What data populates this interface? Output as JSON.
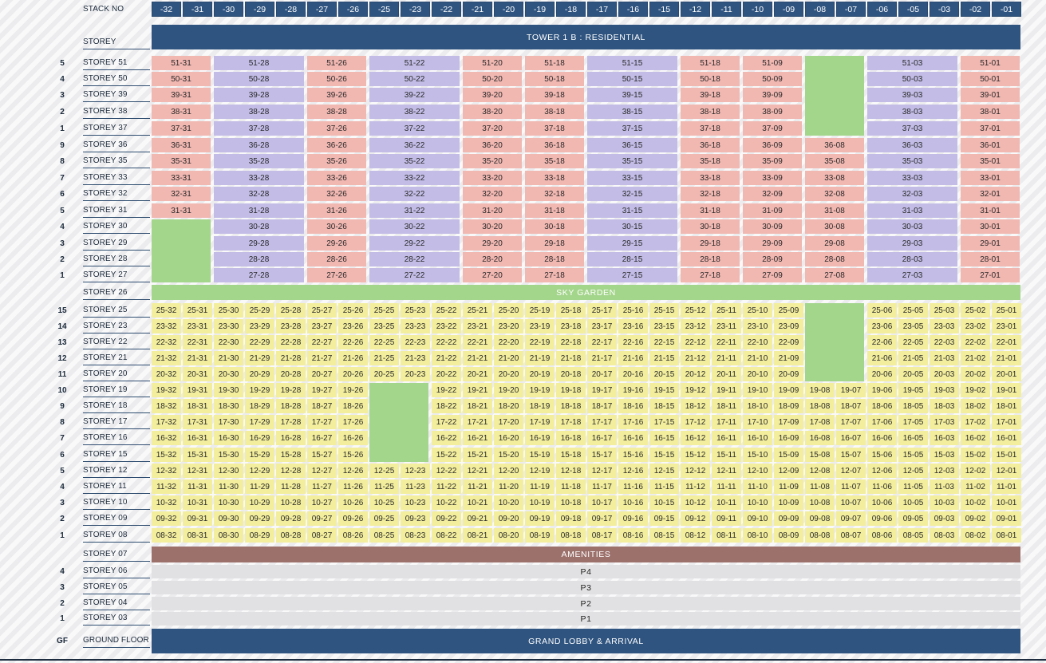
{
  "header": {
    "stack_label": "STACK NO",
    "storey_label": "STOREY",
    "stacks": [
      "-32",
      "-31",
      "-30",
      "-29",
      "-28",
      "-27",
      "-26",
      "-25",
      "-23",
      "-22",
      "-21",
      "-20",
      "-19",
      "-18",
      "-17",
      "-16",
      "-15",
      "-12",
      "-11",
      "-10",
      "-09",
      "-08",
      "-07",
      "-06",
      "-05",
      "-03",
      "-02",
      "-01"
    ]
  },
  "bands": {
    "tower": "TOWER 1 B : RESIDENTIAL",
    "sky_garden": "SKY GARDEN",
    "amenities": "AMENITIES",
    "lobby": "GRAND LOBBY & ARRIVAL",
    "ground_num": "GF",
    "ground_label": "GROUND FLOOR",
    "sky_label": "STOREY 26",
    "amenities_label": "STOREY 07"
  },
  "upper_section": {
    "rows": [
      {
        "num": "5",
        "label": "STOREY 51"
      },
      {
        "num": "4",
        "label": "STOREY 50"
      },
      {
        "num": "3",
        "label": "STOREY 39"
      },
      {
        "num": "2",
        "label": "STOREY 38"
      },
      {
        "num": "1",
        "label": "STOREY 37"
      },
      {
        "num": "9",
        "label": "STOREY 36"
      },
      {
        "num": "8",
        "label": "STOREY 35"
      },
      {
        "num": "7",
        "label": "STOREY 33"
      },
      {
        "num": "6",
        "label": "STOREY 32"
      },
      {
        "num": "5",
        "label": "STOREY 31"
      },
      {
        "num": "4",
        "label": "STOREY 30"
      },
      {
        "num": "3",
        "label": "STOREY 29"
      },
      {
        "num": "2",
        "label": "STOREY 28"
      },
      {
        "num": "1",
        "label": "STOREY 27"
      }
    ],
    "units": [
      "51-31",
      "51-28",
      "51-26",
      "51-22",
      "51-20",
      "51-18",
      "51-15",
      "51-18",
      "51-09",
      "",
      "51-03",
      "51-01",
      "50-31",
      "50-28",
      "50-26",
      "50-22",
      "50-20",
      "50-18",
      "50-15",
      "50-18",
      "50-09",
      "",
      "50-03",
      "50-01",
      "39-31",
      "39-28",
      "39-26",
      "39-22",
      "39-20",
      "39-18",
      "39-15",
      "39-18",
      "39-09",
      "",
      "39-03",
      "39-01",
      "38-31",
      "38-28",
      "38-28",
      "38-22",
      "38-20",
      "38-18",
      "38-15",
      "38-18",
      "38-09",
      "",
      "38-03",
      "38-01",
      "37-31",
      "37-28",
      "37-26",
      "37-22",
      "37-20",
      "37-18",
      "37-15",
      "37-18",
      "37-09",
      "",
      "37-03",
      "37-01",
      "36-31",
      "36-28",
      "36-26",
      "36-22",
      "36-20",
      "36-18",
      "36-15",
      "36-18",
      "36-09",
      "36-08",
      "36-03",
      "36-01",
      "35-31",
      "35-28",
      "35-26",
      "35-22",
      "35-20",
      "35-18",
      "35-15",
      "35-18",
      "35-09",
      "35-08",
      "35-03",
      "35-01",
      "33-31",
      "33-28",
      "33-26",
      "33-22",
      "33-20",
      "33-18",
      "33-15",
      "33-18",
      "33-09",
      "33-08",
      "33-03",
      "33-01",
      "32-31",
      "32-28",
      "32-26",
      "32-22",
      "32-20",
      "32-18",
      "32-15",
      "32-18",
      "32-09",
      "32-08",
      "32-03",
      "32-01",
      "31-31",
      "31-28",
      "31-26",
      "31-22",
      "31-20",
      "31-18",
      "31-15",
      "31-18",
      "31-09",
      "31-08",
      "31-03",
      "31-01",
      "",
      "30-28",
      "30-26",
      "30-22",
      "30-20",
      "30-18",
      "30-15",
      "30-18",
      "30-09",
      "30-08",
      "30-03",
      "30-01",
      "",
      "29-28",
      "29-26",
      "29-22",
      "29-20",
      "29-18",
      "29-15",
      "29-18",
      "29-09",
      "29-08",
      "29-03",
      "29-01",
      "",
      "28-28",
      "28-26",
      "28-22",
      "28-20",
      "28-18",
      "28-15",
      "28-18",
      "28-09",
      "28-08",
      "28-03",
      "28-01",
      "",
      "27-28",
      "27-26",
      "27-22",
      "27-20",
      "27-18",
      "27-15",
      "27-18",
      "27-09",
      "27-08",
      "27-03",
      "27-01"
    ]
  },
  "lower_section": {
    "rows": [
      {
        "num": "15",
        "label": "STOREY 25"
      },
      {
        "num": "14",
        "label": "STOREY 23"
      },
      {
        "num": "13",
        "label": "STOREY 22"
      },
      {
        "num": "12",
        "label": "STOREY 21"
      },
      {
        "num": "11",
        "label": "STOREY 20"
      },
      {
        "num": "10",
        "label": "STOREY 19"
      },
      {
        "num": "9",
        "label": "STOREY 18"
      },
      {
        "num": "8",
        "label": "STOREY 17"
      },
      {
        "num": "7",
        "label": "STOREY 16"
      },
      {
        "num": "6",
        "label": "STOREY 15"
      },
      {
        "num": "5",
        "label": "STOREY 12"
      },
      {
        "num": "4",
        "label": "STOREY 11"
      },
      {
        "num": "3",
        "label": "STOREY 10"
      },
      {
        "num": "2",
        "label": "STOREY 09"
      },
      {
        "num": "1",
        "label": "STOREY 08"
      }
    ],
    "units": [
      "25-32",
      "25-31",
      "25-30",
      "25-29",
      "25-28",
      "25-27",
      "25-26",
      "25-25",
      "25-23",
      "25-22",
      "25-21",
      "25-20",
      "25-19",
      "25-18",
      "25-17",
      "25-16",
      "25-15",
      "25-12",
      "25-11",
      "25-10",
      "25-09",
      "",
      "",
      "25-06",
      "25-05",
      "25-03",
      "25-02",
      "25-01",
      "23-32",
      "23-31",
      "23-30",
      "23-29",
      "23-28",
      "23-27",
      "23-26",
      "23-25",
      "23-23",
      "23-22",
      "23-21",
      "23-20",
      "23-19",
      "23-18",
      "23-17",
      "23-16",
      "23-15",
      "23-12",
      "23-11",
      "23-10",
      "23-09",
      "",
      "",
      "23-06",
      "23-05",
      "23-03",
      "23-02",
      "23-01",
      "22-32",
      "22-31",
      "22-30",
      "22-29",
      "22-28",
      "22-27",
      "22-26",
      "22-25",
      "22-23",
      "22-22",
      "22-21",
      "22-20",
      "22-19",
      "22-18",
      "22-17",
      "22-16",
      "22-15",
      "22-12",
      "22-11",
      "22-10",
      "22-09",
      "",
      "",
      "22-06",
      "22-05",
      "22-03",
      "22-02",
      "22-01",
      "21-32",
      "21-31",
      "21-30",
      "21-29",
      "21-28",
      "21-27",
      "21-26",
      "21-25",
      "21-23",
      "21-22",
      "21-21",
      "21-20",
      "21-19",
      "21-18",
      "21-17",
      "21-16",
      "21-15",
      "21-12",
      "21-11",
      "21-10",
      "21-09",
      "",
      "",
      "21-06",
      "21-05",
      "21-03",
      "21-02",
      "21-01",
      "20-32",
      "20-31",
      "20-30",
      "20-29",
      "20-28",
      "20-27",
      "20-26",
      "20-25",
      "20-23",
      "20-22",
      "20-21",
      "20-20",
      "20-19",
      "20-18",
      "20-17",
      "20-16",
      "20-15",
      "20-12",
      "20-11",
      "20-10",
      "20-09",
      "",
      "",
      "20-06",
      "20-05",
      "20-03",
      "20-02",
      "20-01",
      "19-32",
      "19-31",
      "19-30",
      "19-29",
      "19-28",
      "19-27",
      "19-26",
      "",
      "",
      "19-22",
      "19-21",
      "19-20",
      "19-19",
      "19-18",
      "19-17",
      "19-16",
      "19-15",
      "19-12",
      "19-11",
      "19-10",
      "19-09",
      "19-08",
      "19-07",
      "19-06",
      "19-05",
      "19-03",
      "19-02",
      "19-01",
      "18-32",
      "18-31",
      "18-30",
      "18-29",
      "18-28",
      "18-27",
      "18-26",
      "",
      "",
      "18-22",
      "18-21",
      "18-20",
      "18-19",
      "18-18",
      "18-17",
      "18-16",
      "18-15",
      "18-12",
      "18-11",
      "18-10",
      "18-09",
      "18-08",
      "18-07",
      "18-06",
      "18-05",
      "18-03",
      "18-02",
      "18-01",
      "17-32",
      "17-31",
      "17-30",
      "17-29",
      "17-28",
      "17-27",
      "17-26",
      "",
      "",
      "17-22",
      "17-21",
      "17-20",
      "17-19",
      "17-18",
      "17-17",
      "17-16",
      "17-15",
      "17-12",
      "17-11",
      "17-10",
      "17-09",
      "17-08",
      "17-07",
      "17-06",
      "17-05",
      "17-03",
      "17-02",
      "17-01",
      "16-32",
      "16-31",
      "16-30",
      "16-29",
      "16-28",
      "16-27",
      "16-26",
      "",
      "",
      "16-22",
      "16-21",
      "16-20",
      "16-19",
      "16-18",
      "16-17",
      "16-16",
      "16-15",
      "16-12",
      "16-11",
      "16-10",
      "16-09",
      "16-08",
      "16-07",
      "16-06",
      "16-05",
      "16-03",
      "16-02",
      "16-01",
      "15-32",
      "15-31",
      "15-30",
      "15-29",
      "15-28",
      "15-27",
      "15-26",
      "",
      "",
      "15-22",
      "15-21",
      "15-20",
      "15-19",
      "15-18",
      "15-17",
      "15-16",
      "15-15",
      "15-12",
      "15-11",
      "15-10",
      "15-09",
      "15-08",
      "15-07",
      "15-06",
      "15-05",
      "15-03",
      "15-02",
      "15-01",
      "12-32",
      "12-31",
      "12-30",
      "12-29",
      "12-28",
      "12-27",
      "12-26",
      "12-25",
      "12-23",
      "12-22",
      "12-21",
      "12-20",
      "12-19",
      "12-18",
      "12-17",
      "12-16",
      "12-15",
      "12-12",
      "12-11",
      "12-10",
      "12-09",
      "12-08",
      "12-07",
      "12-06",
      "12-05",
      "12-03",
      "12-02",
      "12-01",
      "11-32",
      "11-31",
      "11-30",
      "11-29",
      "11-28",
      "11-27",
      "11-26",
      "11-25",
      "11-23",
      "11-22",
      "11-21",
      "11-20",
      "11-19",
      "11-18",
      "11-17",
      "11-16",
      "11-15",
      "11-12",
      "11-11",
      "11-10",
      "11-09",
      "11-08",
      "11-07",
      "11-06",
      "11-05",
      "11-03",
      "11-02",
      "11-01",
      "10-32",
      "10-31",
      "10-30",
      "10-29",
      "10-28",
      "10-27",
      "10-26",
      "10-25",
      "10-23",
      "10-22",
      "10-21",
      "10-20",
      "10-19",
      "10-18",
      "10-17",
      "10-16",
      "10-15",
      "10-12",
      "10-11",
      "10-10",
      "10-09",
      "10-08",
      "10-07",
      "10-06",
      "10-05",
      "10-03",
      "10-02",
      "10-01",
      "09-32",
      "09-31",
      "09-30",
      "09-29",
      "09-28",
      "09-27",
      "09-26",
      "09-25",
      "09-23",
      "09-22",
      "09-21",
      "09-20",
      "09-19",
      "09-18",
      "09-17",
      "09-16",
      "09-15",
      "09-12",
      "09-11",
      "09-10",
      "09-09",
      "09-08",
      "09-07",
      "09-06",
      "09-05",
      "09-03",
      "09-02",
      "09-01",
      "08-32",
      "08-31",
      "08-30",
      "08-29",
      "08-28",
      "08-27",
      "08-26",
      "08-25",
      "08-23",
      "08-22",
      "08-21",
      "08-20",
      "08-19",
      "08-18",
      "08-17",
      "08-16",
      "08-15",
      "08-12",
      "08-11",
      "08-10",
      "08-09",
      "08-08",
      "08-07",
      "08-06",
      "08-05",
      "08-03",
      "08-02",
      "08-01"
    ]
  },
  "parking": [
    {
      "num": "4",
      "label": "STOREY 06",
      "value": "P4"
    },
    {
      "num": "3",
      "label": "STOREY 05",
      "value": "P3"
    },
    {
      "num": "2",
      "label": "STOREY 04",
      "value": "P2"
    },
    {
      "num": "1",
      "label": "STOREY 03",
      "value": "P1"
    }
  ],
  "colors": {
    "blue": "#2f5480",
    "pink": "#f1b7b1",
    "purple": "#c2bce6",
    "yellow": "#f3ee9d",
    "green": "#a3d58b",
    "brown": "#9c706b",
    "grey": "#e1e1e3"
  }
}
